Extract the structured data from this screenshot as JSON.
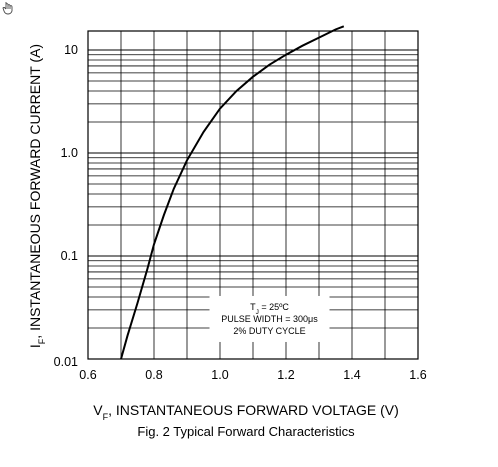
{
  "chart_data": {
    "type": "line",
    "xlabel_main": "V",
    "xlabel_sub": "F",
    "xlabel_rest": ", INSTANTANEOUS FORWARD VOLTAGE (V)",
    "ylabel_main": "I",
    "ylabel_sub": "F",
    "ylabel_rest": ", INSTANTANEOUS FORWARD CURRENT (A)",
    "caption": "Fig. 2 Typical Forward Characteristics",
    "xlim": [
      0.6,
      1.6
    ],
    "ylim": [
      0.01,
      20
    ],
    "yscale": "log",
    "grid": true,
    "x_ticks": [
      "0.6",
      "0.8",
      "1.0",
      "1.2",
      "1.4",
      "1.6"
    ],
    "x_tick_values": [
      0.6,
      0.8,
      1.0,
      1.2,
      1.4,
      1.6
    ],
    "x_grid_values": [
      0.6,
      0.7,
      0.8,
      0.9,
      1.0,
      1.1,
      1.2,
      1.3,
      1.4,
      1.5,
      1.6
    ],
    "y_ticks": [
      "0.01",
      "0.1",
      "1.0",
      "10"
    ],
    "y_tick_values": [
      0.01,
      0.1,
      1.0,
      10
    ],
    "series": [
      {
        "x": [
          0.7,
          0.72,
          0.75,
          0.78,
          0.8,
          0.83,
          0.86,
          0.9,
          0.95,
          1.0,
          1.05,
          1.1,
          1.15,
          1.2,
          1.25,
          1.3,
          1.35,
          1.375
        ],
        "y": [
          0.01,
          0.017,
          0.035,
          0.075,
          0.13,
          0.25,
          0.45,
          0.85,
          1.6,
          2.7,
          4.0,
          5.5,
          7.2,
          9.0,
          11.0,
          13.2,
          15.8,
          17.0
        ]
      }
    ],
    "annotation": {
      "line1_main": "T",
      "line1_sub": "J",
      "line1_rest": " = 25ºC",
      "line2": "PULSE WIDTH = 300μs",
      "line3": "2% DUTY CYCLE"
    },
    "colors": {
      "grid": "#000000",
      "curve": "#000000",
      "background": "#ffffff"
    }
  }
}
